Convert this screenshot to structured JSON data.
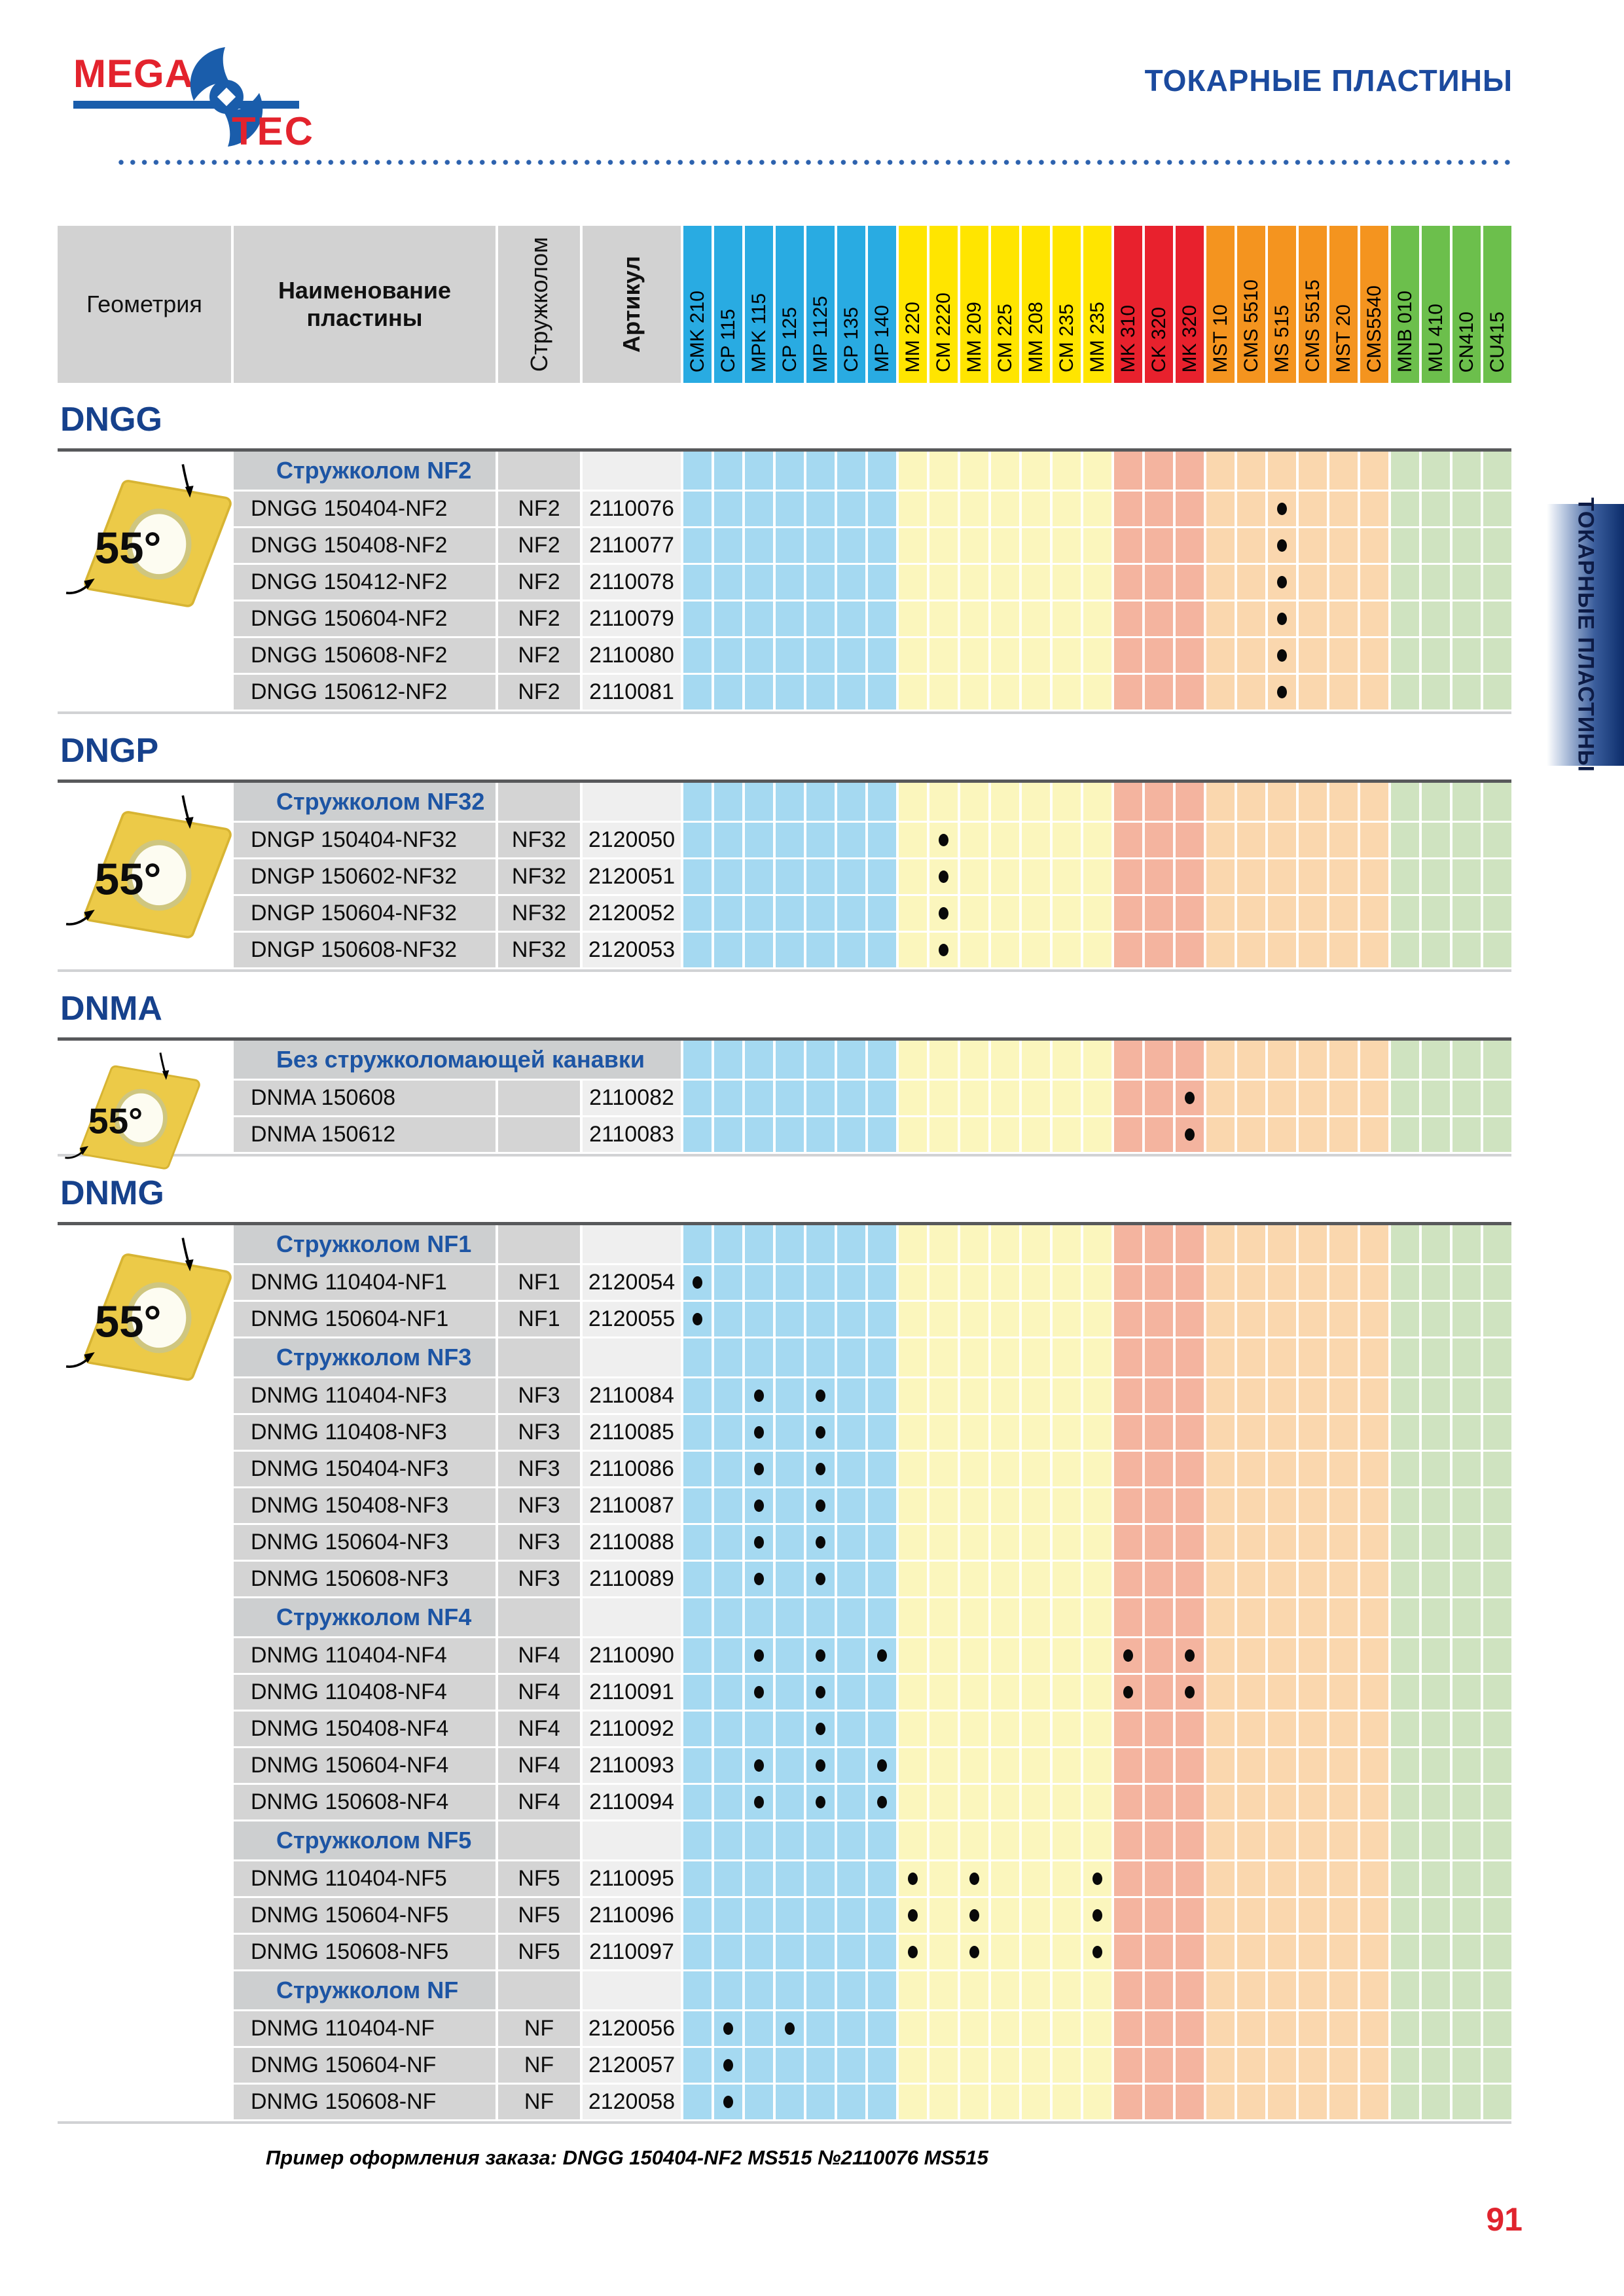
{
  "page": {
    "logo": {
      "mega": "MEGA",
      "tec": "TEC"
    },
    "title": "ТОКАРНЫЕ ПЛАСТИНЫ",
    "side_tab": "ТОКАРНЫЕ ПЛАСТИНЫ",
    "footer_note": "Пример оформления заказа: DNGG 150404-NF2 MS515 №2110076 MS515",
    "page_number": "91"
  },
  "colors": {
    "accent_navy": "#1b4a9e",
    "section_navy": "#16418c",
    "band_blue": "#1d55a4",
    "logo_red": "#e3232d",
    "logo_blue": "#1a5dab",
    "header_gray": "#d2d2d2",
    "article_gray": "#efefef",
    "insert_yellow": "#e9c544"
  },
  "table": {
    "headers": {
      "geometry": "Геометрия",
      "name": "Наименование пластины",
      "chipbreaker": "Стружколом",
      "article": "Артикул"
    },
    "grade_groups": [
      {
        "color": "#29abe2",
        "tint": "#a5d9f1",
        "grades": [
          "CMK 210",
          "CP 115",
          "MPK 115",
          "CP 125",
          "MP 1125",
          "CP 135",
          "MP 140"
        ]
      },
      {
        "color": "#ffe500",
        "tint": "#fbf6bd",
        "grades": [
          "MM 220",
          "CM 2220",
          "MM 209",
          "CM 225",
          "MM 208",
          "CM 235",
          "MM 235"
        ]
      },
      {
        "color": "#e8212d",
        "tint": "#f4b49f",
        "grades": [
          "MK 310",
          "CK 320",
          "MK 320"
        ]
      },
      {
        "color": "#f4941f",
        "tint": "#fad7ae",
        "grades": [
          "MST 10",
          "CMS 5510",
          "MS 515",
          "CMS 5515",
          "MST 20",
          "CMS5540"
        ]
      },
      {
        "color": "#6cbf4c",
        "tint": "#cfe3c0",
        "grades": [
          "MNB 010",
          "MU 410",
          "CN410",
          "CU415"
        ]
      }
    ],
    "sections": [
      {
        "title": "DNGG",
        "angle_label": "55°",
        "bands": [
          {
            "label": "Стружколом NF2",
            "rows": [
              {
                "name": "DNGG 150404-NF2",
                "chip": "NF2",
                "article": "2110076",
                "dots": [
                  19
                ]
              },
              {
                "name": "DNGG 150408-NF2",
                "chip": "NF2",
                "article": "2110077",
                "dots": [
                  19
                ]
              },
              {
                "name": "DNGG 150412-NF2",
                "chip": "NF2",
                "article": "2110078",
                "dots": [
                  19
                ]
              },
              {
                "name": "DNGG 150604-NF2",
                "chip": "NF2",
                "article": "2110079",
                "dots": [
                  19
                ]
              },
              {
                "name": "DNGG 150608-NF2",
                "chip": "NF2",
                "article": "2110080",
                "dots": [
                  19
                ]
              },
              {
                "name": "DNGG 150612-NF2",
                "chip": "NF2",
                "article": "2110081",
                "dots": [
                  19
                ]
              }
            ]
          }
        ]
      },
      {
        "title": "DNGP",
        "angle_label": "55°",
        "bands": [
          {
            "label": "Стружколом NF32",
            "rows": [
              {
                "name": "DNGP 150404-NF32",
                "chip": "NF32",
                "article": "2120050",
                "dots": [
                  8
                ]
              },
              {
                "name": "DNGP 150602-NF32",
                "chip": "NF32",
                "article": "2120051",
                "dots": [
                  8
                ]
              },
              {
                "name": "DNGP 150604-NF32",
                "chip": "NF32",
                "article": "2120052",
                "dots": [
                  8
                ]
              },
              {
                "name": "DNGP 150608-NF32",
                "chip": "NF32",
                "article": "2120053",
                "dots": [
                  8
                ]
              }
            ]
          }
        ]
      },
      {
        "title": "DNMA",
        "angle_label": "55°",
        "bands": [
          {
            "label": "Без стружколомающей канавки",
            "rows": [
              {
                "name": "DNMA 150608",
                "chip": "",
                "article": "2110082",
                "dots": [
                  16
                ]
              },
              {
                "name": "DNMA 150612",
                "chip": "",
                "article": "2110083",
                "dots": [
                  16
                ]
              }
            ]
          }
        ]
      },
      {
        "title": "DNMG",
        "angle_label": "55°",
        "bands": [
          {
            "label": "Стружколом NF1",
            "rows": [
              {
                "name": "DNMG 110404-NF1",
                "chip": "NF1",
                "article": "2120054",
                "dots": [
                  0
                ]
              },
              {
                "name": "DNMG 150604-NF1",
                "chip": "NF1",
                "article": "2120055",
                "dots": [
                  0
                ]
              }
            ]
          },
          {
            "label": "Стружколом NF3",
            "rows": [
              {
                "name": "DNMG 110404-NF3",
                "chip": "NF3",
                "article": "2110084",
                "dots": [
                  2,
                  4
                ]
              },
              {
                "name": "DNMG 110408-NF3",
                "chip": "NF3",
                "article": "2110085",
                "dots": [
                  2,
                  4
                ]
              },
              {
                "name": "DNMG 150404-NF3",
                "chip": "NF3",
                "article": "2110086",
                "dots": [
                  2,
                  4
                ]
              },
              {
                "name": "DNMG 150408-NF3",
                "chip": "NF3",
                "article": "2110087",
                "dots": [
                  2,
                  4
                ]
              },
              {
                "name": "DNMG 150604-NF3",
                "chip": "NF3",
                "article": "2110088",
                "dots": [
                  2,
                  4
                ]
              },
              {
                "name": "DNMG 150608-NF3",
                "chip": "NF3",
                "article": "2110089",
                "dots": [
                  2,
                  4
                ]
              }
            ]
          },
          {
            "label": "Стружколом NF4",
            "rows": [
              {
                "name": "DNMG 110404-NF4",
                "chip": "NF4",
                "article": "2110090",
                "dots": [
                  2,
                  4,
                  6,
                  14,
                  16
                ]
              },
              {
                "name": "DNMG 110408-NF4",
                "chip": "NF4",
                "article": "2110091",
                "dots": [
                  2,
                  4,
                  14,
                  16
                ]
              },
              {
                "name": "DNMG 150408-NF4",
                "chip": "NF4",
                "article": "2110092",
                "dots": [
                  4
                ]
              },
              {
                "name": "DNMG 150604-NF4",
                "chip": "NF4",
                "article": "2110093",
                "dots": [
                  2,
                  4,
                  6
                ]
              },
              {
                "name": "DNMG 150608-NF4",
                "chip": "NF4",
                "article": "2110094",
                "dots": [
                  2,
                  4,
                  6
                ]
              }
            ]
          },
          {
            "label": "Стружколом NF5",
            "rows": [
              {
                "name": "DNMG 110404-NF5",
                "chip": "NF5",
                "article": "2110095",
                "dots": [
                  7,
                  9,
                  13
                ]
              },
              {
                "name": "DNMG 150604-NF5",
                "chip": "NF5",
                "article": "2110096",
                "dots": [
                  7,
                  9,
                  13
                ]
              },
              {
                "name": "DNMG 150608-NF5",
                "chip": "NF5",
                "article": "2110097",
                "dots": [
                  7,
                  9,
                  13
                ]
              }
            ]
          },
          {
            "label": "Стружколом NF",
            "rows": [
              {
                "name": "DNMG 110404-NF",
                "chip": "NF",
                "article": "2120056",
                "dots": [
                  1,
                  3
                ]
              },
              {
                "name": "DNMG 150604-NF",
                "chip": "NF",
                "article": "2120057",
                "dots": [
                  1
                ]
              },
              {
                "name": "DNMG 150608-NF",
                "chip": "NF",
                "article": "2120058",
                "dots": [
                  1
                ]
              }
            ]
          }
        ]
      }
    ]
  }
}
